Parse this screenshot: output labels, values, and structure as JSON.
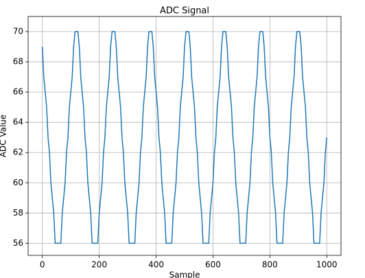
{
  "chart_data": {
    "type": "line",
    "title": "ADC Signal",
    "x_label": "Sample",
    "y_label": "ADC Value",
    "x": [
      0,
      5,
      10,
      15,
      20,
      25,
      30,
      35,
      40,
      45,
      50,
      55,
      60,
      65,
      70,
      75,
      80,
      85,
      90,
      95,
      100,
      105,
      110,
      115,
      120,
      125,
      130,
      135,
      140,
      145,
      150,
      155,
      160,
      165,
      170,
      175,
      180,
      185,
      190,
      195,
      200,
      205,
      210,
      215,
      220,
      225,
      230,
      235,
      240,
      245,
      250,
      255,
      260,
      265,
      270,
      275,
      280,
      285,
      290,
      295,
      300,
      305,
      310,
      315,
      320,
      325,
      330,
      335,
      340,
      345,
      350,
      355,
      360,
      365,
      370,
      375,
      380,
      385,
      390,
      395,
      400,
      405,
      410,
      415,
      420,
      425,
      430,
      435,
      440,
      445,
      450,
      455,
      460,
      465,
      470,
      475,
      480,
      485,
      490,
      495,
      500,
      505,
      510,
      515,
      520,
      525,
      530,
      535,
      540,
      545,
      550,
      555,
      560,
      565,
      570,
      575,
      580,
      585,
      590,
      595,
      600,
      605,
      610,
      615,
      620,
      625,
      630,
      635,
      640,
      645,
      650,
      655,
      660,
      665,
      670,
      675,
      680,
      685,
      690,
      695,
      700,
      705,
      710,
      715,
      720,
      725,
      730,
      735,
      740,
      745,
      750,
      755,
      760,
      765,
      770,
      775,
      780,
      785,
      790,
      795,
      800,
      805,
      810,
      815,
      820,
      825,
      830,
      835,
      840,
      845,
      850,
      855,
      860,
      865,
      870,
      875,
      880,
      885,
      890,
      895,
      900,
      905,
      910,
      915,
      920,
      925,
      930,
      935,
      940,
      945,
      950,
      955,
      960,
      965,
      970,
      975,
      980,
      985,
      990,
      995,
      1000
    ],
    "series": [
      {
        "name": "ADC",
        "color": "#1f77b4",
        "values": [
          69,
          67,
          66,
          65,
          63,
          62,
          60,
          59,
          58,
          56,
          56,
          56,
          56,
          56,
          58,
          59,
          60,
          62,
          63,
          65,
          66,
          67,
          69,
          70,
          70,
          70,
          69,
          67,
          66,
          65,
          63,
          62,
          60,
          59,
          58,
          56,
          56,
          56,
          56,
          56,
          58,
          59,
          60,
          62,
          63,
          65,
          66,
          67,
          69,
          70,
          70,
          70,
          69,
          67,
          66,
          65,
          63,
          62,
          60,
          59,
          58,
          56,
          56,
          56,
          56,
          56,
          58,
          59,
          60,
          62,
          63,
          65,
          66,
          67,
          69,
          70,
          70,
          70,
          69,
          67,
          66,
          65,
          63,
          62,
          60,
          59,
          58,
          56,
          56,
          56,
          56,
          56,
          58,
          59,
          60,
          62,
          63,
          65,
          66,
          67,
          69,
          70,
          70,
          70,
          69,
          67,
          66,
          65,
          63,
          62,
          60,
          59,
          58,
          56,
          56,
          56,
          56,
          56,
          58,
          59,
          60,
          62,
          63,
          65,
          66,
          67,
          69,
          70,
          70,
          70,
          69,
          67,
          66,
          65,
          63,
          62,
          60,
          59,
          58,
          56,
          56,
          56,
          56,
          56,
          58,
          59,
          60,
          62,
          63,
          65,
          66,
          67,
          69,
          70,
          70,
          70,
          69,
          67,
          66,
          65,
          63,
          62,
          60,
          59,
          58,
          56,
          56,
          56,
          56,
          56,
          58,
          59,
          60,
          62,
          63,
          65,
          66,
          67,
          69,
          70,
          70,
          70,
          69,
          67,
          66,
          65,
          63,
          62,
          60,
          59,
          58,
          56,
          56,
          56,
          56,
          56,
          58,
          59,
          60,
          62,
          63
        ]
      }
    ],
    "xlim": [
      -50,
      1050
    ],
    "xticks": [
      0,
      200,
      400,
      600,
      800,
      1000
    ],
    "ylim": [
      55.2,
      71
    ],
    "yticks": [
      56,
      58,
      60,
      62,
      64,
      66,
      68,
      70
    ],
    "grid": true
  }
}
